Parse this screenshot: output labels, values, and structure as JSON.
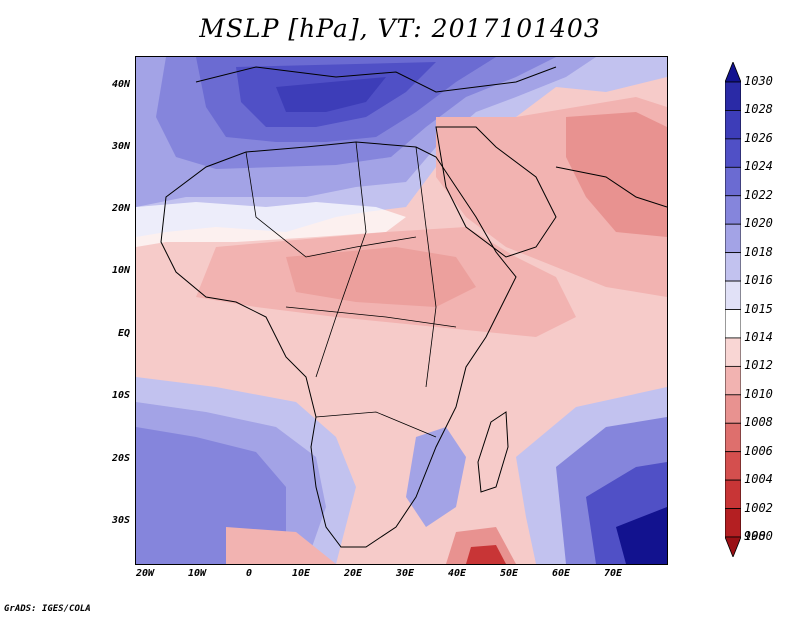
{
  "title": "MSLP [hPa], VT: 2017101403",
  "credit": "GrADS: IGES/COLA",
  "lat_labels": [
    "40N",
    "30N",
    "20N",
    "10N",
    "EQ",
    "10S",
    "20S",
    "30S"
  ],
  "lon_labels": [
    "20W",
    "10W",
    "0",
    "10E",
    "20E",
    "30E",
    "40E",
    "50E",
    "60E",
    "70E"
  ],
  "colorbar": {
    "levels": [
      "1030",
      "1028",
      "1026",
      "1024",
      "1022",
      "1020",
      "1018",
      "1016",
      "1015",
      "1014",
      "1012",
      "1010",
      "1008",
      "1006",
      "1004",
      "1002",
      "1000",
      "998"
    ],
    "colors": [
      "#12128f",
      "#2a2aa6",
      "#3d3db8",
      "#5050c6",
      "#6b6bd2",
      "#8585dc",
      "#a3a3e6",
      "#c2c2ef",
      "#e1e1f7",
      "#ffffff",
      "#f9d6d4",
      "#f2b3b1",
      "#e89290",
      "#de6f6d",
      "#d44f4e",
      "#c83536",
      "#b41f22",
      "#9a1015"
    ]
  }
}
